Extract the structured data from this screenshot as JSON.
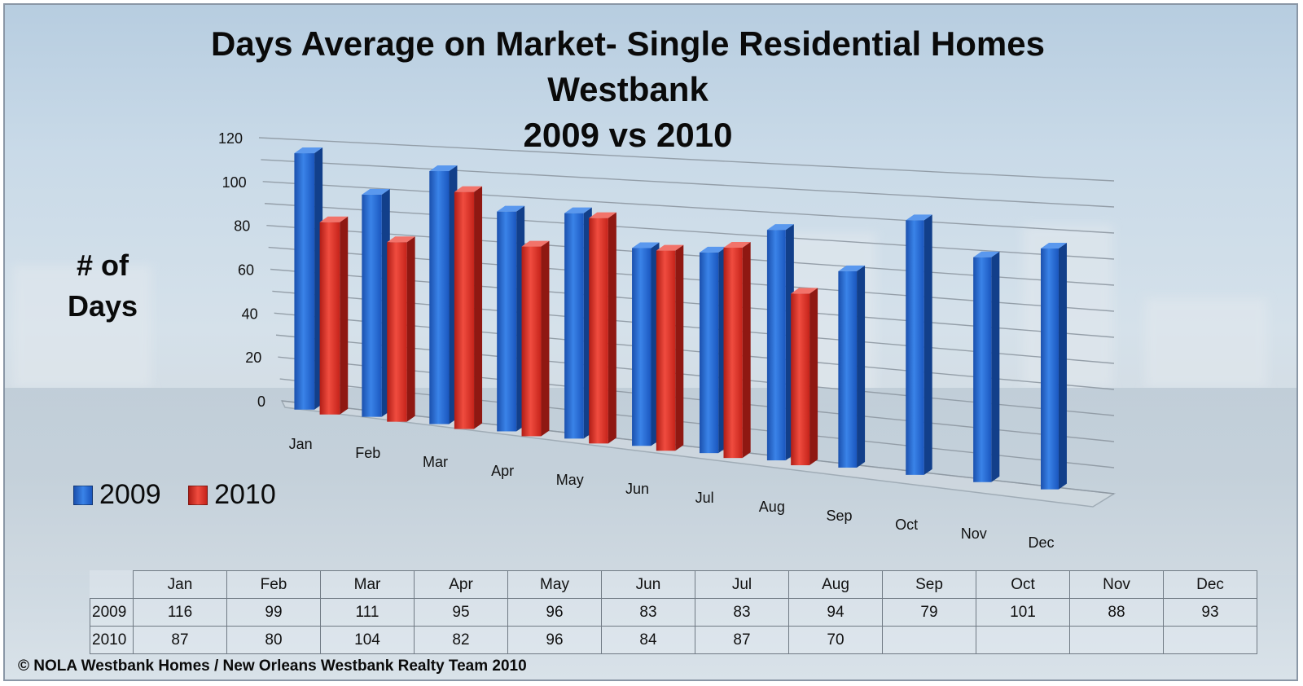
{
  "chart_data": {
    "type": "bar",
    "title_lines": [
      "Days Average on Market- Single Residential Homes",
      "Westbank",
      "2009 vs 2010"
    ],
    "ylabel_lines": [
      "# of",
      "Days"
    ],
    "xlabel": "",
    "categories": [
      "Jan",
      "Feb",
      "Mar",
      "Apr",
      "May",
      "Jun",
      "Jul",
      "Aug",
      "Sep",
      "Oct",
      "Nov",
      "Dec"
    ],
    "series": [
      {
        "name": "2009",
        "color": "#1f5fc8",
        "values": [
          116,
          99,
          111,
          95,
          96,
          83,
          83,
          94,
          79,
          101,
          88,
          93
        ]
      },
      {
        "name": "2010",
        "color": "#d42b22",
        "values": [
          87,
          80,
          104,
          82,
          96,
          84,
          87,
          70,
          null,
          null,
          null,
          null
        ]
      }
    ],
    "ylim": [
      0,
      120
    ],
    "yticks": [
      0,
      20,
      40,
      60,
      80,
      100,
      120
    ],
    "grid": true,
    "style": "3d-perspective",
    "legend_position": "bottom-left"
  },
  "data_table": {
    "headers": [
      "Jan",
      "Feb",
      "Mar",
      "Apr",
      "May",
      "Jun",
      "Jul",
      "Aug",
      "Sep",
      "Oct",
      "Nov",
      "Dec"
    ],
    "rows": [
      {
        "label": "2009",
        "values": [
          "116",
          "99",
          "111",
          "95",
          "96",
          "83",
          "83",
          "94",
          "79",
          "101",
          "88",
          "93"
        ]
      },
      {
        "label": "2010",
        "values": [
          "87",
          "80",
          "104",
          "82",
          "96",
          "84",
          "87",
          "70",
          "",
          "",
          "",
          ""
        ]
      }
    ]
  },
  "footer": "© NOLA Westbank Homes / New Orleans Westbank Realty Team 2010"
}
